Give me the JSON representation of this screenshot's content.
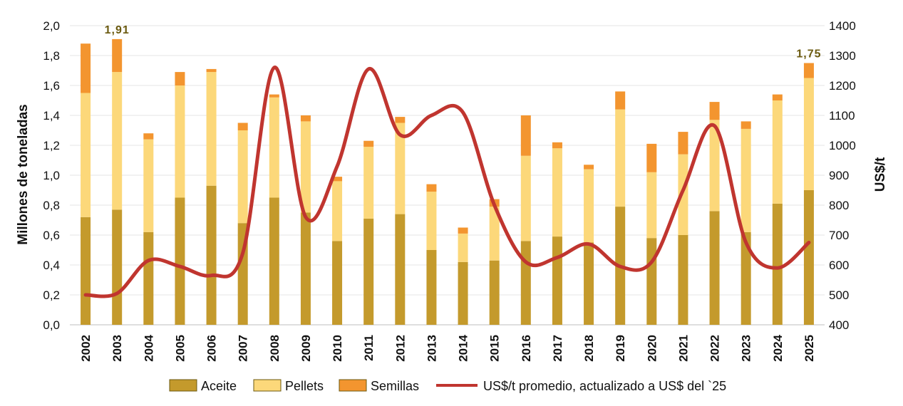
{
  "chart_data": {
    "type": "bar",
    "stacked": true,
    "categories": [
      "2002",
      "2003",
      "2004",
      "2005",
      "2006",
      "2007",
      "2008",
      "2009",
      "2010",
      "2011",
      "2012",
      "2013",
      "2014",
      "2015",
      "2016",
      "2017",
      "2018",
      "2019",
      "2020",
      "2021",
      "2022",
      "2023",
      "2024",
      "2025"
    ],
    "series": [
      {
        "name": "Aceite",
        "color": "#c49a2c",
        "values": [
          0.72,
          0.77,
          0.62,
          0.85,
          0.93,
          0.68,
          0.85,
          0.75,
          0.56,
          0.71,
          0.74,
          0.5,
          0.42,
          0.43,
          0.56,
          0.59,
          0.55,
          0.79,
          0.58,
          0.6,
          0.76,
          0.62,
          0.81,
          0.9
        ]
      },
      {
        "name": "Pellets",
        "color": "#fcd87a",
        "values": [
          0.83,
          0.92,
          0.62,
          0.75,
          0.76,
          0.62,
          0.67,
          0.61,
          0.4,
          0.48,
          0.61,
          0.39,
          0.19,
          0.36,
          0.57,
          0.59,
          0.49,
          0.65,
          0.44,
          0.54,
          0.61,
          0.69,
          0.69,
          0.75
        ]
      },
      {
        "name": "Semillas",
        "color": "#f3952f",
        "values": [
          0.33,
          0.22,
          0.04,
          0.09,
          0.02,
          0.05,
          0.02,
          0.04,
          0.03,
          0.04,
          0.04,
          0.05,
          0.04,
          0.05,
          0.27,
          0.04,
          0.03,
          0.12,
          0.19,
          0.15,
          0.12,
          0.05,
          0.04,
          0.1
        ]
      }
    ],
    "line": {
      "name": "US$/t promedio, actualizado a US$ del `25",
      "color": "#c0352f",
      "axis": "right",
      "values": [
        500,
        505,
        615,
        595,
        565,
        640,
        1260,
        760,
        930,
        1255,
        1035,
        1100,
        1110,
        800,
        610,
        625,
        670,
        595,
        610,
        850,
        1065,
        675,
        590,
        675
      ]
    },
    "ylabel": "Millones de toneladas",
    "y2label": "US$/t",
    "ylim": [
      0,
      2.0
    ],
    "y2lim": [
      400,
      1400
    ],
    "yticks": [
      "0,0",
      "0,2",
      "0,4",
      "0,6",
      "0,8",
      "1,0",
      "1,2",
      "1,4",
      "1,6",
      "1,8",
      "2,0"
    ],
    "y2ticks": [
      "400",
      "500",
      "600",
      "700",
      "800",
      "900",
      "1000",
      "1100",
      "1200",
      "1300",
      "1400"
    ],
    "grid": true,
    "legend_position": "bottom",
    "annotations": [
      {
        "category": "2003",
        "text": "1,91",
        "value": 1.91
      },
      {
        "category": "2025",
        "text": "1,75",
        "value": 1.75
      }
    ]
  }
}
